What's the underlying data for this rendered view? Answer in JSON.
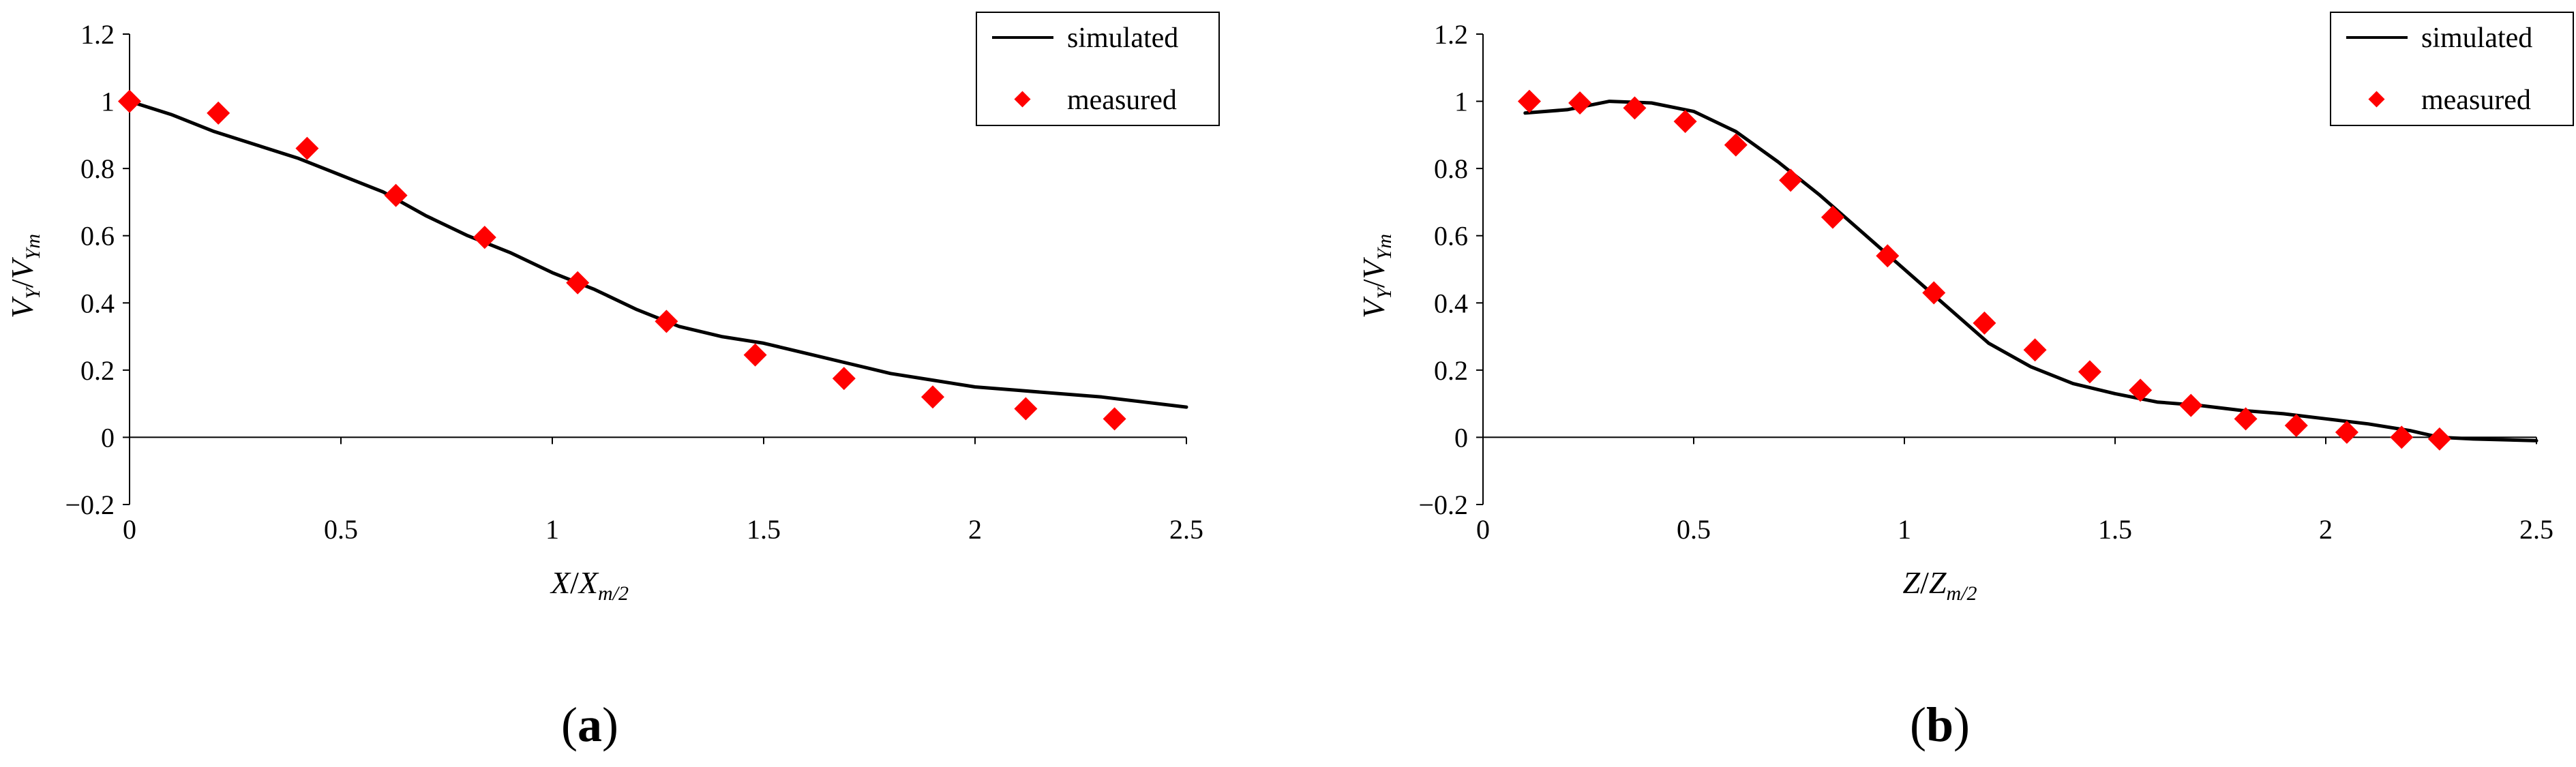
{
  "chart_data": [
    {
      "type": "line",
      "panel_label": "(a)",
      "panel_letter": "a",
      "xlabel": {
        "main": "X",
        "sep": "/",
        "var": "X",
        "sub": "m/2"
      },
      "ylabel": {
        "num": "V",
        "num_sub": "Y",
        "sep": "/",
        "den": "V",
        "den_sub": "Ym"
      },
      "xlim": [
        0,
        2.5
      ],
      "ylim": [
        -0.2,
        1.2
      ],
      "xticks": [
        "0",
        "0.5",
        "1",
        "1.5",
        "2",
        "2.5"
      ],
      "yticks": [
        "−0.2",
        "0",
        "0.2",
        "0.4",
        "0.6",
        "0.8",
        "1",
        "1.2"
      ],
      "legend": {
        "simulated": "simulated",
        "measured": "measured",
        "position": "top-right"
      },
      "series": [
        {
          "name": "simulated",
          "style": "line",
          "color": "#000000",
          "x": [
            0,
            0.1,
            0.2,
            0.3,
            0.4,
            0.5,
            0.6,
            0.7,
            0.8,
            0.9,
            1.0,
            1.1,
            1.2,
            1.3,
            1.4,
            1.5,
            1.6,
            1.7,
            1.8,
            1.9,
            2.0,
            2.1,
            2.2,
            2.3,
            2.4,
            2.5
          ],
          "y": [
            1.0,
            0.96,
            0.91,
            0.87,
            0.83,
            0.78,
            0.73,
            0.66,
            0.6,
            0.55,
            0.49,
            0.44,
            0.38,
            0.33,
            0.3,
            0.28,
            0.25,
            0.22,
            0.19,
            0.17,
            0.15,
            0.14,
            0.13,
            0.12,
            0.105,
            0.09
          ]
        },
        {
          "name": "measured",
          "style": "marker",
          "color": "#ff0000",
          "x": [
            0,
            0.21,
            0.42,
            0.63,
            0.84,
            1.06,
            1.27,
            1.48,
            1.69,
            1.9,
            2.12,
            2.33
          ],
          "y": [
            1.0,
            0.965,
            0.86,
            0.72,
            0.595,
            0.46,
            0.345,
            0.245,
            0.175,
            0.12,
            0.085,
            0.055
          ]
        }
      ]
    },
    {
      "type": "line",
      "panel_label": "(b)",
      "panel_letter": "b",
      "xlabel": {
        "main": "Z",
        "sep": "/",
        "var": "Z",
        "sub": "m/2"
      },
      "ylabel": {
        "num": "V",
        "num_sub": "Y",
        "sep": "/",
        "den": "V",
        "den_sub": "Ym"
      },
      "xlim": [
        0,
        2.5
      ],
      "ylim": [
        -0.2,
        1.2
      ],
      "xticks": [
        "0",
        "0.5",
        "1",
        "1.5",
        "2",
        "2.5"
      ],
      "yticks": [
        "−0.2",
        "0",
        "0.2",
        "0.4",
        "0.6",
        "0.8",
        "1",
        "1.2"
      ],
      "legend": {
        "simulated": "simulated",
        "measured": "measured",
        "position": "top-right"
      },
      "series": [
        {
          "name": "simulated",
          "style": "line",
          "color": "#000000",
          "x": [
            0.1,
            0.2,
            0.3,
            0.4,
            0.5,
            0.6,
            0.7,
            0.8,
            0.9,
            1.0,
            1.1,
            1.2,
            1.3,
            1.4,
            1.5,
            1.6,
            1.7,
            1.8,
            1.9,
            2.0,
            2.1,
            2.2,
            2.27,
            2.35,
            2.5
          ],
          "y": [
            0.965,
            0.975,
            1.0,
            0.995,
            0.97,
            0.91,
            0.82,
            0.72,
            0.61,
            0.5,
            0.39,
            0.28,
            0.21,
            0.16,
            0.13,
            0.105,
            0.095,
            0.08,
            0.07,
            0.055,
            0.04,
            0.02,
            0.0,
            -0.005,
            -0.01
          ]
        },
        {
          "name": "measured",
          "style": "marker",
          "color": "#ff0000",
          "x": [
            0.11,
            0.23,
            0.36,
            0.48,
            0.6,
            0.73,
            0.83,
            0.96,
            1.07,
            1.19,
            1.31,
            1.44,
            1.56,
            1.68,
            1.81,
            1.93,
            2.05,
            2.18,
            2.27
          ],
          "y": [
            1.0,
            0.995,
            0.98,
            0.94,
            0.87,
            0.765,
            0.655,
            0.54,
            0.43,
            0.34,
            0.26,
            0.195,
            0.14,
            0.095,
            0.055,
            0.035,
            0.015,
            0.0,
            -0.005
          ]
        }
      ]
    }
  ]
}
